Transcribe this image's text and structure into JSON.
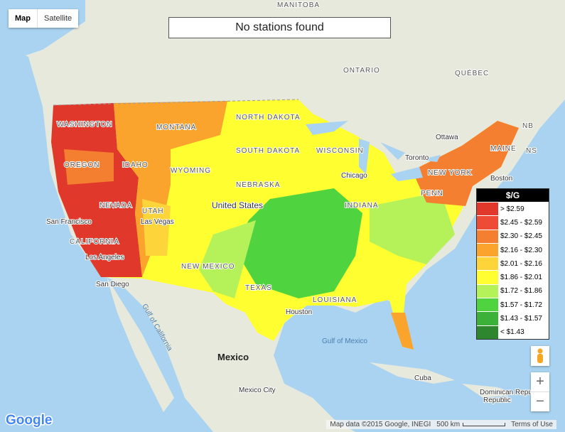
{
  "map_type": {
    "map": "Map",
    "satellite": "Satellite"
  },
  "status": "No stations found",
  "legend": {
    "title": "$/G",
    "items": [
      {
        "label": "> $2.59",
        "color": "#e0392b"
      },
      {
        "label": "$2.45 - $2.59",
        "color": "#ee4b36"
      },
      {
        "label": "$2.30 - $2.45",
        "color": "#f57f30"
      },
      {
        "label": "$2.16 - $2.30",
        "color": "#faa42e"
      },
      {
        "label": "$2.01 - $2.16",
        "color": "#fdd43a"
      },
      {
        "label": "$1.86 - $2.01",
        "color": "#fefe30"
      },
      {
        "label": "$1.72 - $1.86",
        "color": "#b5f25a"
      },
      {
        "label": "$1.57 - $1.72",
        "color": "#4fd43f"
      },
      {
        "label": "$1.43 - $1.57",
        "color": "#3bb139"
      },
      {
        "label": "< $1.43",
        "color": "#2e862e"
      }
    ]
  },
  "places": [
    "MANITOBA",
    "ONTARIO",
    "QUÉBEC",
    "Ottawa",
    "Toronto",
    "Boston",
    "NEW YORK",
    "MAINE",
    "NB",
    "NS",
    "MONTANA",
    "NORTH DAKOTA",
    "SOUTH DAKOTA",
    "WYOMING",
    "NEBRASKA",
    "United States",
    "Chicago",
    "WISCONSIN",
    "INDIANA",
    "PENN",
    "WASHINGTON",
    "OREGON",
    "NEVADA",
    "CALIFORNIA",
    "San Francisco",
    "Los Angeles",
    "San Diego",
    "Las Vegas",
    "UTAH",
    "IDAHO",
    "NEW MEXICO",
    "TEXAS",
    "Houston",
    "LOUISIANA",
    "Gulf of Mexico",
    "Gulf of California",
    "Mexico",
    "Mexico City",
    "Cuba",
    "Dominican Republic",
    "Republic"
  ],
  "footer": {
    "logo": "Google",
    "attribution": "Map data ©2015 Google, INEGI",
    "scale": "500 km",
    "terms": "Terms of Use"
  },
  "zoom": {
    "in": "+",
    "out": "−"
  }
}
